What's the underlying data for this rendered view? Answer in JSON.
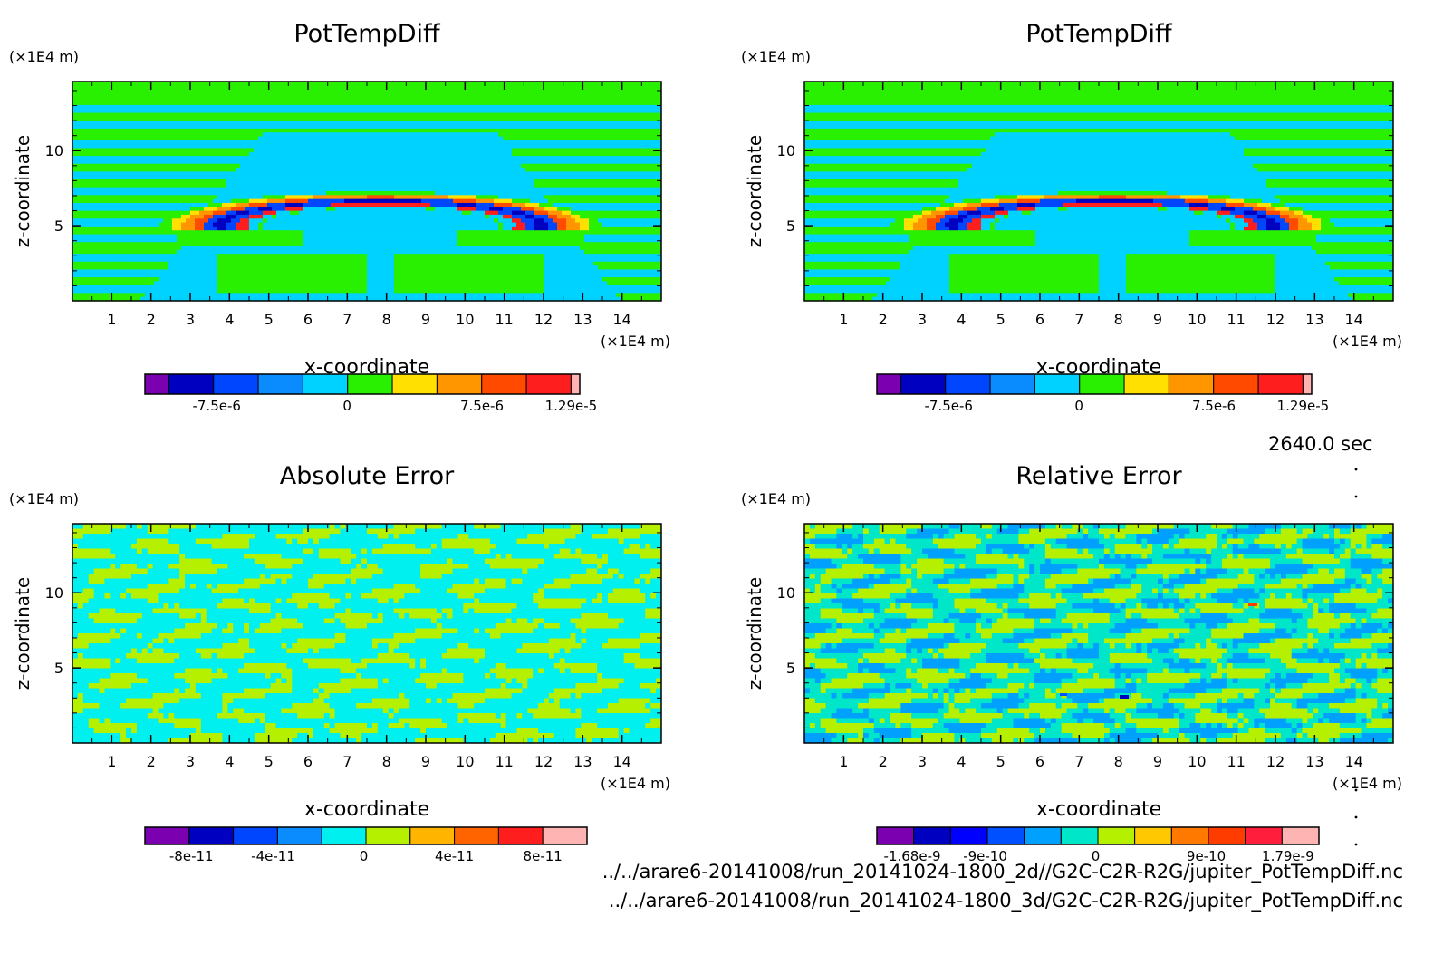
{
  "colors": {
    "pot": [
      "#7a00b0",
      "#0000c0",
      "#0046ff",
      "#0a8cff",
      "#00d2ff",
      "#29f000",
      "#ffe000",
      "#ff9600",
      "#ff4a00",
      "#ff1e1e",
      "#ffb4b4"
    ],
    "err": [
      "#7a00b0",
      "#0000c0",
      "#0046ff",
      "#0a8cff",
      "#00f0f0",
      "#b4f000",
      "#ffb400",
      "#ff6400",
      "#ff1e1e",
      "#ffb4b4"
    ],
    "rel": [
      "#7a00b0",
      "#0000c0",
      "#0000ff",
      "#0050ff",
      "#00a0ff",
      "#00e6c8",
      "#b4f000",
      "#ffc800",
      "#ff7800",
      "#ff3c00",
      "#ff1e3c",
      "#ffb4b4"
    ]
  },
  "chart_data": [
    {
      "type": "heatmap",
      "title": "PotTempDiff",
      "xlabel": "x-coordinate",
      "ylabel": "z-coordinate",
      "x_unit": "(×1E4 m)",
      "y_unit": "(×1E4 m)",
      "x_ticks": [
        "1",
        "2",
        "3",
        "4",
        "5",
        "6",
        "7",
        "8",
        "9",
        "10",
        "11",
        "12",
        "13",
        "14"
      ],
      "y_ticks": [
        "5",
        "10"
      ],
      "xlim": [
        0,
        15
      ],
      "ylim": [
        0,
        14.6
      ],
      "field": "thermal",
      "colorbar_labels": [
        "-7.5e-6",
        "0",
        "7.5e-6",
        "1.29e-5"
      ]
    },
    {
      "type": "heatmap",
      "title": "PotTempDiff",
      "xlabel": "x-coordinate",
      "ylabel": "z-coordinate",
      "x_unit": "(×1E4 m)",
      "y_unit": "(×1E4 m)",
      "x_ticks": [
        "1",
        "2",
        "3",
        "4",
        "5",
        "6",
        "7",
        "8",
        "9",
        "10",
        "11",
        "12",
        "13",
        "14"
      ],
      "y_ticks": [
        "5",
        "10"
      ],
      "xlim": [
        0,
        15
      ],
      "ylim": [
        0,
        14.6
      ],
      "field": "thermal",
      "colorbar_labels": [
        "-7.5e-6",
        "0",
        "7.5e-6",
        "1.29e-5"
      ]
    },
    {
      "type": "heatmap",
      "title": "Absolute Error",
      "xlabel": "x-coordinate",
      "ylabel": "z-coordinate",
      "x_unit": "(×1E4 m)",
      "y_unit": "(×1E4 m)",
      "x_ticks": [
        "1",
        "2",
        "3",
        "4",
        "5",
        "6",
        "7",
        "8",
        "9",
        "10",
        "11",
        "12",
        "13",
        "14"
      ],
      "y_ticks": [
        "5",
        "10"
      ],
      "xlim": [
        0,
        15
      ],
      "ylim": [
        0,
        14.6
      ],
      "field": "abs_noise",
      "colorbar_labels": [
        "-8e-11",
        "-4e-11",
        "0",
        "4e-11",
        "8e-11"
      ]
    },
    {
      "type": "heatmap",
      "title": "Relative Error",
      "xlabel": "x-coordinate",
      "ylabel": "z-coordinate",
      "x_unit": "(×1E4 m)",
      "y_unit": "(×1E4 m)",
      "x_ticks": [
        "1",
        "2",
        "3",
        "4",
        "5",
        "6",
        "7",
        "8",
        "9",
        "10",
        "11",
        "12",
        "13",
        "14"
      ],
      "y_ticks": [
        "5",
        "10"
      ],
      "xlim": [
        0,
        15
      ],
      "ylim": [
        0,
        14.6
      ],
      "field": "rel_noise",
      "colorbar_labels": [
        "-1.68e-9",
        "-9e-10",
        "0",
        "9e-10",
        "1.79e-9"
      ]
    }
  ],
  "time_label": "2640.0 sec",
  "footer": {
    "file1": "../../arare6-20141008/run_20141024-1800_2d//G2C-C2R-R2G/jupiter_PotTempDiff.nc",
    "file2": "../../arare6-20141008/run_20141024-1800_3d/G2C-C2R-R2G/jupiter_PotTempDiff.nc"
  }
}
